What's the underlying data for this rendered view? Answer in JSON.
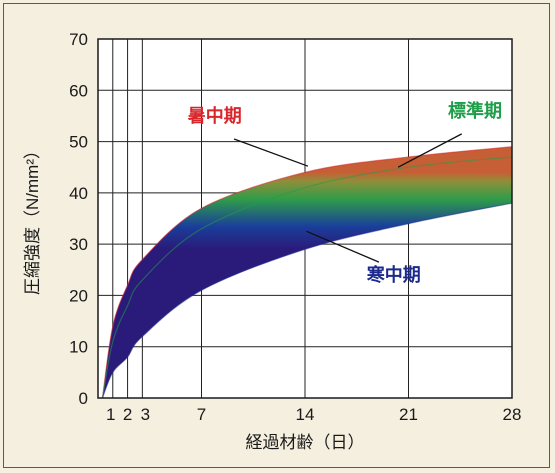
{
  "chart_data": {
    "type": "area",
    "title": "",
    "xlabel": "経過材齢（日）",
    "ylabel": "圧縮強度（N/mm²）",
    "xlim": [
      0,
      28
    ],
    "ylim": [
      0,
      70
    ],
    "x_ticks": [
      1,
      2,
      3,
      7,
      14,
      21,
      28
    ],
    "y_ticks": [
      0,
      10,
      20,
      30,
      40,
      50,
      60,
      70
    ],
    "grid": true,
    "colors": {
      "summer": "#d8262b",
      "standard": "#1f9e49",
      "winter": "#1c2a8e"
    },
    "series": [
      {
        "name": "暑中期",
        "color": "#d8262b",
        "x": [
          0.3,
          1,
          2,
          3,
          7,
          14,
          21,
          28
        ],
        "values": [
          0,
          14,
          22,
          27,
          37,
          44,
          47,
          49
        ]
      },
      {
        "name": "標準期",
        "color": "#1f9e49",
        "x": [
          0.3,
          1,
          2,
          3,
          7,
          14,
          21,
          28
        ],
        "values": [
          0,
          11,
          18,
          23,
          33,
          41,
          45,
          47
        ]
      },
      {
        "name": "寒中期",
        "color": "#1c2a8e",
        "x": [
          0.3,
          1,
          2,
          3,
          7,
          14,
          21,
          28
        ],
        "values": [
          0,
          5,
          8,
          12,
          21,
          29,
          34,
          38
        ]
      }
    ]
  }
}
